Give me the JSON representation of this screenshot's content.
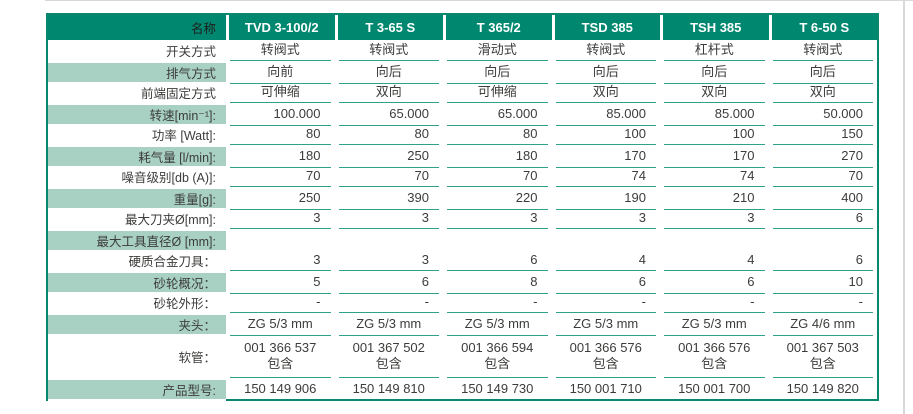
{
  "colors": {
    "header_bg": "#00876F",
    "header_text": "#ffffff",
    "label_header_text": "#1d1d1b",
    "shade_bg": "#A8D1C3",
    "line": "#2FA089",
    "border": "#0A876F",
    "text": "#3c3c3b",
    "edge_line": "#d8d8d8"
  },
  "table": {
    "name_header": "名称",
    "columns": [
      "TVD 3-100/2",
      "T 3-65 S",
      "T 365/2",
      "TSD 385",
      "TSH 385",
      "T 6-50 S"
    ],
    "rows": [
      {
        "label": "开关方式",
        "align": "center",
        "shaded": false,
        "line": true,
        "values": [
          "转阀式",
          "转阀式",
          "滑动式",
          "转阀式",
          "杠杆式",
          "转阀式"
        ]
      },
      {
        "label": "排气方式",
        "align": "center",
        "shaded": true,
        "line": true,
        "values": [
          "向前",
          "向后",
          "向后",
          "向后",
          "向后",
          "向后"
        ]
      },
      {
        "label": "前端固定方式",
        "align": "center",
        "shaded": false,
        "line": true,
        "values": [
          "可伸缩",
          "双向",
          "可伸缩",
          "双向",
          "双向",
          "双向"
        ]
      },
      {
        "label": "转速[min⁻¹]:",
        "align": "right",
        "shaded": true,
        "line": true,
        "values": [
          "100.000",
          "65.000",
          "65.000",
          "85.000",
          "85.000",
          "50.000"
        ]
      },
      {
        "label": "功率 [Watt]:",
        "align": "right",
        "shaded": false,
        "line": true,
        "values": [
          "80",
          "80",
          "80",
          "100",
          "100",
          "150"
        ]
      },
      {
        "label": "耗气量 [l/min]:",
        "align": "right",
        "shaded": true,
        "line": true,
        "values": [
          "180",
          "250",
          "180",
          "170",
          "170",
          "270"
        ]
      },
      {
        "label": "噪音级别[db (A)]:",
        "align": "right",
        "shaded": false,
        "line": true,
        "values": [
          "70",
          "70",
          "70",
          "74",
          "74",
          "70"
        ]
      },
      {
        "label": "重量[g]:",
        "align": "right",
        "shaded": true,
        "line": true,
        "values": [
          "250",
          "390",
          "220",
          "190",
          "210",
          "400"
        ]
      },
      {
        "label": "最大刀夹Ø[mm]:",
        "align": "right",
        "shaded": false,
        "line": true,
        "values": [
          "3",
          "3",
          "3",
          "3",
          "3",
          "6"
        ]
      },
      {
        "label": "最大工具直径Ø [mm]:",
        "align": "right",
        "shaded": true,
        "line": false,
        "values": [
          "",
          "",
          "",
          "",
          "",
          ""
        ]
      },
      {
        "label": "硬质合金刀具：",
        "align": "right",
        "shaded": false,
        "line": true,
        "values": [
          "3",
          "3",
          "6",
          "4",
          "4",
          "6"
        ]
      },
      {
        "label": "砂轮概况：",
        "align": "right",
        "shaded": true,
        "line": true,
        "values": [
          "5",
          "6",
          "8",
          "6",
          "6",
          "10"
        ]
      },
      {
        "label": "砂轮外形：",
        "align": "right",
        "shaded": false,
        "line": true,
        "values": [
          "-",
          "-",
          "-",
          "-",
          "-",
          "-"
        ]
      },
      {
        "label": "夹头：",
        "align": "center",
        "shaded": true,
        "line": true,
        "values": [
          "ZG 5/3 mm",
          "ZG 5/3 mm",
          "ZG 5/3 mm",
          "ZG 5/3 mm",
          "ZG 5/3 mm",
          "ZG 4/6 mm"
        ]
      },
      {
        "label": "软管：",
        "align": "center",
        "shaded": false,
        "line": true,
        "tall": true,
        "values": [
          "001 366 537",
          "001 367 502",
          "001 366 594",
          "001 366 576",
          "001 366 576",
          "001 367 503"
        ],
        "values2": [
          "包含",
          "包含",
          "包含",
          "包含",
          "包含",
          "包含"
        ]
      },
      {
        "label": "产品型号:",
        "align": "center",
        "shaded": true,
        "line": false,
        "values": [
          "150 149 906",
          "150 149 810",
          "150 149 730",
          "150 001 710",
          "150 001 700",
          "150 149 820"
        ]
      }
    ]
  }
}
